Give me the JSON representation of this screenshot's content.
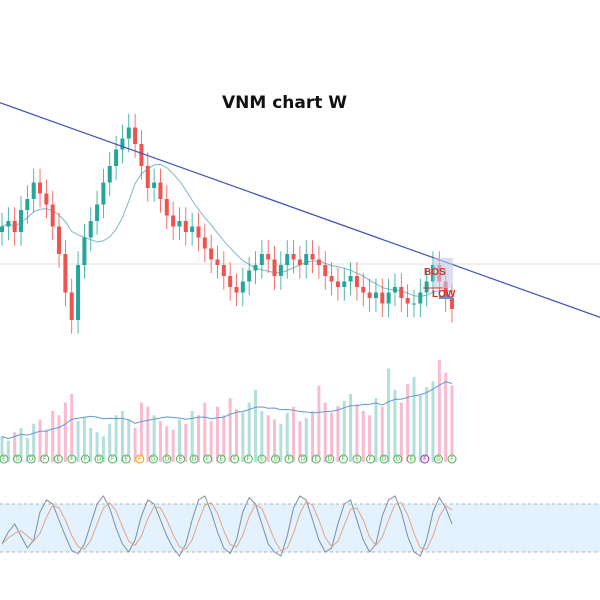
{
  "title": "VNM chart W",
  "colors": {
    "up": "#26a69a",
    "down": "#ef5350",
    "trendline": "#3f51b5",
    "ma": "#7fb6c9",
    "vol_up": "#b2dfdb",
    "vol_down": "#f8bbd0",
    "vol_ma": "#5b9bd5",
    "stoch_band": "#e3f2fd",
    "stoch_k": "#7b8ea6",
    "stoch_d": "#e0a58b",
    "marker_green": "#4caf50",
    "marker_orange": "#ff9800",
    "marker_purple": "#9c27b0",
    "label_red": "#d32f2f",
    "box_blue": "#c5cae9"
  },
  "annotations": {
    "bos": "BOS",
    "low_tag": "LOW"
  },
  "markers": [
    "E",
    "D",
    "D",
    "F",
    "E",
    "F",
    "F",
    "D",
    "F",
    "E",
    "F",
    "D",
    "D",
    "E",
    "D",
    "F",
    "E",
    "F",
    "F",
    "E",
    "D",
    "F",
    "D",
    "E",
    "D",
    "F",
    "E",
    "F",
    "D",
    "D",
    "E",
    "F",
    "D",
    "F"
  ],
  "marker_highlight": {
    "10": "orange",
    "31": "purple",
    "18": "green"
  },
  "chart_data": {
    "type": "candlestick",
    "title": "VNM chart W",
    "price_closes": [
      62,
      63,
      61,
      65,
      67,
      70,
      68,
      66,
      62,
      57,
      50,
      45,
      55,
      60,
      63,
      66,
      70,
      73,
      76,
      78,
      80,
      77,
      73,
      69,
      70,
      67,
      64,
      62,
      63,
      61,
      62,
      60,
      58,
      56,
      55,
      53,
      51,
      50,
      52,
      54,
      55,
      57,
      56,
      53,
      55,
      57,
      56,
      55,
      57,
      56,
      55,
      53,
      52,
      51,
      52,
      53,
      51,
      50,
      49,
      50,
      48,
      50,
      51,
      49,
      48,
      48,
      50,
      52,
      55,
      52,
      49,
      47
    ],
    "trendline": {
      "x": [
        0,
        1
      ],
      "y": [
        84.5,
        45.5
      ]
    },
    "volume": [
      30,
      25,
      35,
      40,
      28,
      45,
      50,
      38,
      60,
      55,
      70,
      80,
      48,
      52,
      40,
      35,
      30,
      45,
      55,
      60,
      50,
      40,
      70,
      65,
      55,
      48,
      42,
      38,
      50,
      45,
      60,
      55,
      70,
      48,
      65,
      55,
      75,
      62,
      58,
      70,
      85,
      60,
      55,
      50,
      45,
      58,
      65,
      48,
      52,
      60,
      90,
      70,
      58,
      66,
      72,
      80,
      68,
      60,
      55,
      75,
      65,
      110,
      85,
      70,
      92,
      100,
      78,
      88,
      95,
      120,
      105,
      90
    ],
    "stochastic_k": [
      30,
      45,
      55,
      40,
      25,
      35,
      70,
      85,
      80,
      60,
      40,
      22,
      18,
      30,
      55,
      80,
      90,
      75,
      50,
      30,
      20,
      35,
      65,
      85,
      80,
      60,
      40,
      25,
      15,
      30,
      60,
      85,
      90,
      70,
      45,
      25,
      18,
      35,
      70,
      88,
      80,
      55,
      30,
      20,
      15,
      40,
      75,
      90,
      85,
      60,
      35,
      20,
      25,
      55,
      80,
      85,
      60,
      35,
      20,
      30,
      65,
      85,
      90,
      70,
      40,
      20,
      15,
      35,
      70,
      88,
      75,
      55
    ],
    "stochastic_band": [
      20,
      80
    ]
  }
}
